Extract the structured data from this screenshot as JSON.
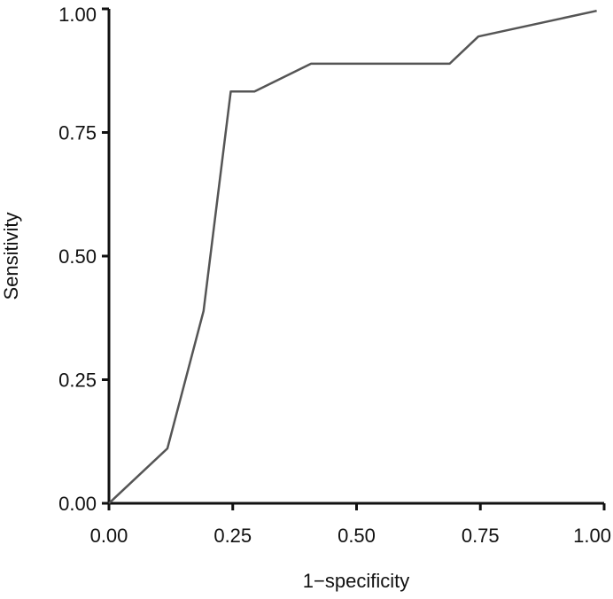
{
  "chart_data": {
    "type": "line",
    "xlabel": "1−specificity",
    "ylabel": "Sensitivity",
    "xlim": [
      0,
      1
    ],
    "ylim": [
      0,
      1
    ],
    "x_ticks": [
      "0.00",
      "0.25",
      "0.50",
      "0.75",
      "1.00"
    ],
    "y_ticks": [
      "0.00",
      "0.25",
      "0.50",
      "0.75",
      "1.00"
    ],
    "grid": false,
    "legend": "none",
    "series": [
      {
        "color": "#555555",
        "points": [
          {
            "x": 0.0,
            "y": 0.0
          },
          {
            "x": 0.118,
            "y": 0.111
          },
          {
            "x": 0.191,
            "y": 0.389
          },
          {
            "x": 0.246,
            "y": 0.833
          },
          {
            "x": 0.294,
            "y": 0.833
          },
          {
            "x": 0.408,
            "y": 0.889
          },
          {
            "x": 0.688,
            "y": 0.889
          },
          {
            "x": 0.746,
            "y": 0.944
          },
          {
            "x": 0.985,
            "y": 0.996
          }
        ]
      }
    ]
  }
}
